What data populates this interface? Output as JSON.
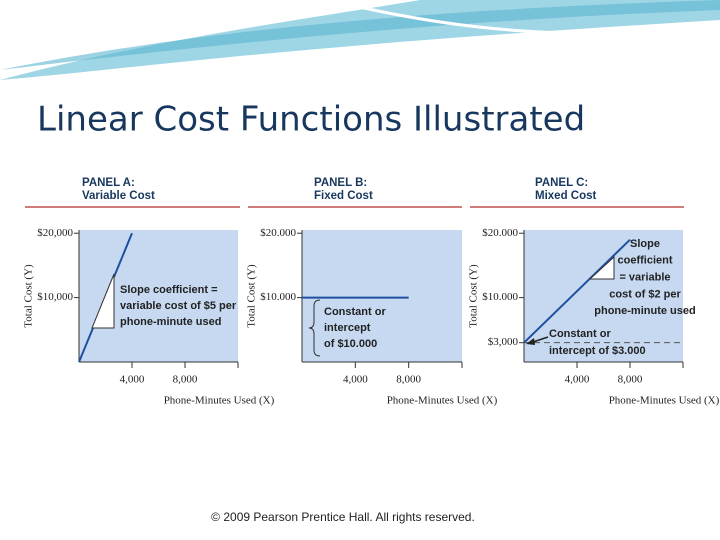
{
  "slide": {
    "title": "Linear Cost Functions Illustrated",
    "footer": "© 2009 Pearson Prentice Hall. All rights reserved."
  },
  "chart_data": [
    {
      "type": "line",
      "title": "PANEL A:",
      "subtitle": "Variable Cost",
      "ylabel": "Total Cost (Y)",
      "xlabel": "Phone-Minutes Used (X)",
      "x": [
        0,
        4000
      ],
      "values": [
        0,
        20000
      ],
      "color": "#1f4fa0",
      "xlim": [
        0,
        12000
      ],
      "ylim": [
        0,
        20500
      ],
      "xticks": [
        {
          "value": 4000,
          "label": "4,000"
        },
        {
          "value": 8000,
          "label": "8,000"
        }
      ],
      "yticks": [
        {
          "value": 10000,
          "label": "$10,000"
        },
        {
          "value": 20000,
          "label": "$20,000"
        }
      ],
      "annotations": [
        [
          "Slope coefficient =",
          "variable cost of $5 per",
          "phone-minute used"
        ]
      ]
    },
    {
      "type": "line",
      "title": "PANEL B:",
      "subtitle": "Fixed Cost",
      "ylabel": "Total Cost (Y)",
      "xlabel": "Phone-Minutes Used (X)",
      "x": [
        0,
        8000
      ],
      "values": [
        10000,
        10000
      ],
      "color": "#1f4fa0",
      "xlim": [
        0,
        12000
      ],
      "ylim": [
        0,
        20500
      ],
      "xticks": [
        {
          "value": 4000,
          "label": "4,000"
        },
        {
          "value": 8000,
          "label": "8,000"
        }
      ],
      "yticks": [
        {
          "value": 10000,
          "label": "$10.000"
        },
        {
          "value": 20000,
          "label": "$20.000"
        }
      ],
      "annotations": [
        [
          "Constant or",
          "intercept",
          "of $10.000"
        ]
      ]
    },
    {
      "type": "line",
      "title": "PANEL C:",
      "subtitle": "Mixed Cost",
      "ylabel": "Total Cost (Y)",
      "xlabel": "Phone-Minutes Used (X)",
      "x": [
        0,
        8000
      ],
      "values": [
        3000,
        19000
      ],
      "color": "#1f4fa0",
      "xlim": [
        0,
        12000
      ],
      "ylim": [
        0,
        20500
      ],
      "xticks": [
        {
          "value": 4000,
          "label": "4,000"
        },
        {
          "value": 8000,
          "label": "8,000"
        }
      ],
      "yticks": [
        {
          "value": 3000,
          "label": "$3,000"
        },
        {
          "value": 10000,
          "label": "$10.000"
        },
        {
          "value": 20000,
          "label": "$20.000"
        }
      ],
      "annotations": [
        [
          "Slope",
          "coefficient",
          "= variable",
          "cost of $2 per",
          "phone-minute used"
        ],
        [
          "Constant or",
          "intercept of $3.000"
        ]
      ]
    }
  ]
}
